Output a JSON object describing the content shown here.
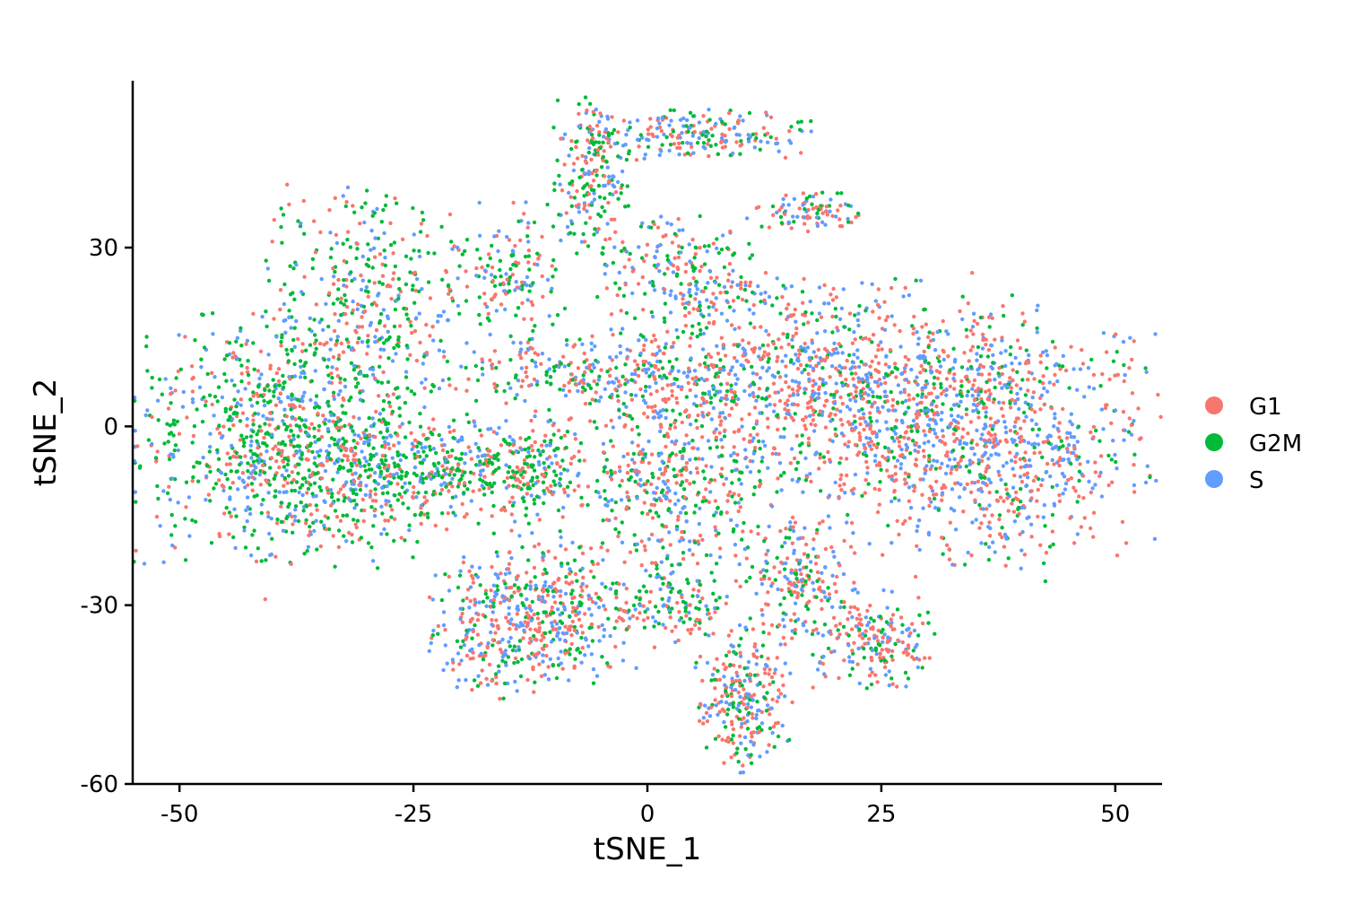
{
  "chart_data": {
    "type": "scatter",
    "title": "",
    "xlabel": "tSNE_1",
    "ylabel": "tSNE_2",
    "xlim": [
      -55,
      55
    ],
    "ylim": [
      -60,
      58
    ],
    "xticks": [
      -50,
      -25,
      0,
      25,
      50
    ],
    "yticks": [
      -60,
      -30,
      0,
      30
    ],
    "xtick_labels": [
      "-50",
      "-25",
      "0",
      "25",
      "50"
    ],
    "ytick_labels": [
      "-60",
      "-30",
      "0",
      "30"
    ],
    "grid": false,
    "legend": "right",
    "series": [
      {
        "name": "G1",
        "color": "#F8766D"
      },
      {
        "name": "G2M",
        "color": "#00BA38"
      },
      {
        "name": "S",
        "color": "#619CFF"
      }
    ],
    "clusters": [
      {
        "x": -38,
        "y": -2,
        "sx": 8,
        "sy": 10,
        "n": 900,
        "mix": [
          0.25,
          0.5,
          0.25
        ]
      },
      {
        "x": -30,
        "y": 22,
        "sx": 5,
        "sy": 9,
        "n": 350,
        "mix": [
          0.25,
          0.5,
          0.25
        ]
      },
      {
        "x": -26,
        "y": -8,
        "sx": 9,
        "sy": 5,
        "n": 500,
        "mix": [
          0.3,
          0.45,
          0.25
        ]
      },
      {
        "x": -13,
        "y": -7,
        "sx": 5,
        "sy": 4,
        "n": 220,
        "mix": [
          0.3,
          0.45,
          0.25
        ]
      },
      {
        "x": -15,
        "y": 25,
        "sx": 3,
        "sy": 6,
        "n": 160,
        "mix": [
          0.35,
          0.35,
          0.3
        ]
      },
      {
        "x": -6,
        "y": 42,
        "sx": 2,
        "sy": 6,
        "n": 200,
        "mix": [
          0.3,
          0.45,
          0.25
        ]
      },
      {
        "x": 5,
        "y": 49,
        "sx": 6,
        "sy": 2,
        "n": 200,
        "mix": [
          0.3,
          0.35,
          0.35
        ]
      },
      {
        "x": 4,
        "y": 25,
        "sx": 4,
        "sy": 5,
        "n": 220,
        "mix": [
          0.4,
          0.3,
          0.3
        ]
      },
      {
        "x": -5,
        "y": 9,
        "sx": 8,
        "sy": 3,
        "n": 280,
        "mix": [
          0.35,
          0.35,
          0.3
        ]
      },
      {
        "x": 18,
        "y": 36,
        "sx": 3,
        "sy": 1.5,
        "n": 90,
        "mix": [
          0.35,
          0.35,
          0.3
        ]
      },
      {
        "x": 18,
        "y": 6,
        "sx": 11,
        "sy": 9,
        "n": 1100,
        "mix": [
          0.45,
          0.2,
          0.35
        ]
      },
      {
        "x": 37,
        "y": -2,
        "sx": 8,
        "sy": 10,
        "n": 900,
        "mix": [
          0.45,
          0.15,
          0.4
        ]
      },
      {
        "x": 3,
        "y": -12,
        "sx": 4,
        "sy": 7,
        "n": 300,
        "mix": [
          0.35,
          0.35,
          0.3
        ]
      },
      {
        "x": -15,
        "y": -33,
        "sx": 4,
        "sy": 6,
        "n": 320,
        "mix": [
          0.45,
          0.25,
          0.3
        ]
      },
      {
        "x": -8,
        "y": -30,
        "sx": 4,
        "sy": 6,
        "n": 260,
        "mix": [
          0.4,
          0.3,
          0.3
        ]
      },
      {
        "x": 3,
        "y": -30,
        "sx": 3,
        "sy": 3,
        "n": 120,
        "mix": [
          0.35,
          0.35,
          0.3
        ]
      },
      {
        "x": 10,
        "y": -45,
        "sx": 2.5,
        "sy": 6,
        "n": 260,
        "mix": [
          0.45,
          0.25,
          0.3
        ]
      },
      {
        "x": 16,
        "y": -25,
        "sx": 3,
        "sy": 5,
        "n": 200,
        "mix": [
          0.45,
          0.25,
          0.3
        ]
      },
      {
        "x": 24,
        "y": -36,
        "sx": 3,
        "sy": 4,
        "n": 200,
        "mix": [
          0.45,
          0.25,
          0.3
        ]
      }
    ]
  }
}
